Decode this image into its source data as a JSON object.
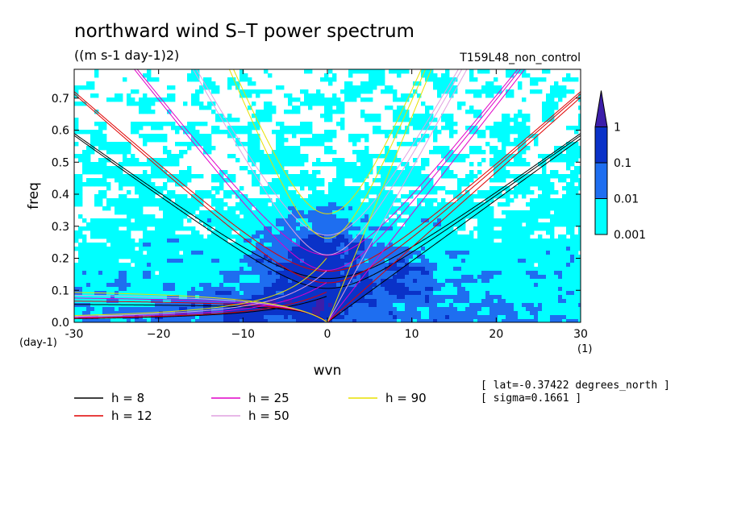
{
  "chart_data": {
    "type": "heatmap",
    "title": "northward wind S–T power spectrum",
    "units": "((m s-1 day-1)2)",
    "run_label": "T159L48_non_control",
    "xlabel": "wvn",
    "ylabel": "freq",
    "x_unit": "(1)",
    "y_unit": "(day-1)",
    "xlim": [
      -30,
      30
    ],
    "ylim": [
      0,
      0.79
    ],
    "x_ticks": [
      -30,
      -20,
      -10,
      0,
      10,
      20,
      30
    ],
    "y_ticks": [
      0.0,
      0.1,
      0.2,
      0.3,
      0.4,
      0.5,
      0.6,
      0.7
    ],
    "x_tick_labels": [
      "-30",
      "−20",
      "−10",
      "0",
      "10",
      "20",
      "30"
    ],
    "y_tick_labels": [
      "0.0",
      "0.1",
      "0.2",
      "0.3",
      "0.4",
      "0.5",
      "0.6",
      "0.7"
    ],
    "colorbar": {
      "levels": [
        0.001,
        0.01,
        0.1,
        1
      ],
      "labels": [
        "0.001",
        "0.01",
        "0.1",
        "1"
      ],
      "colors": [
        "#00ffff",
        "#1e6ef0",
        "#0a32c8",
        "#3c1eaa"
      ],
      "extend": "max"
    },
    "dispersion_curves": {
      "equivalent_depths": [
        8,
        12,
        25,
        50,
        90
      ],
      "colors": [
        "#000000",
        "#e00000",
        "#e000c8",
        "#e0a0e0",
        "#e8e000"
      ]
    },
    "legend": [
      {
        "label": "h =  8",
        "color": "#000000"
      },
      {
        "label": "h = 12",
        "color": "#e00000"
      },
      {
        "label": "h = 25",
        "color": "#e000c8"
      },
      {
        "label": "h = 50",
        "color": "#e0a0e0"
      },
      {
        "label": "h = 90",
        "color": "#e8e000"
      }
    ],
    "annotations": [
      "[ lat=-0.37422 degrees_north ]",
      "[ sigma=0.1661 ]"
    ],
    "grid": false
  }
}
